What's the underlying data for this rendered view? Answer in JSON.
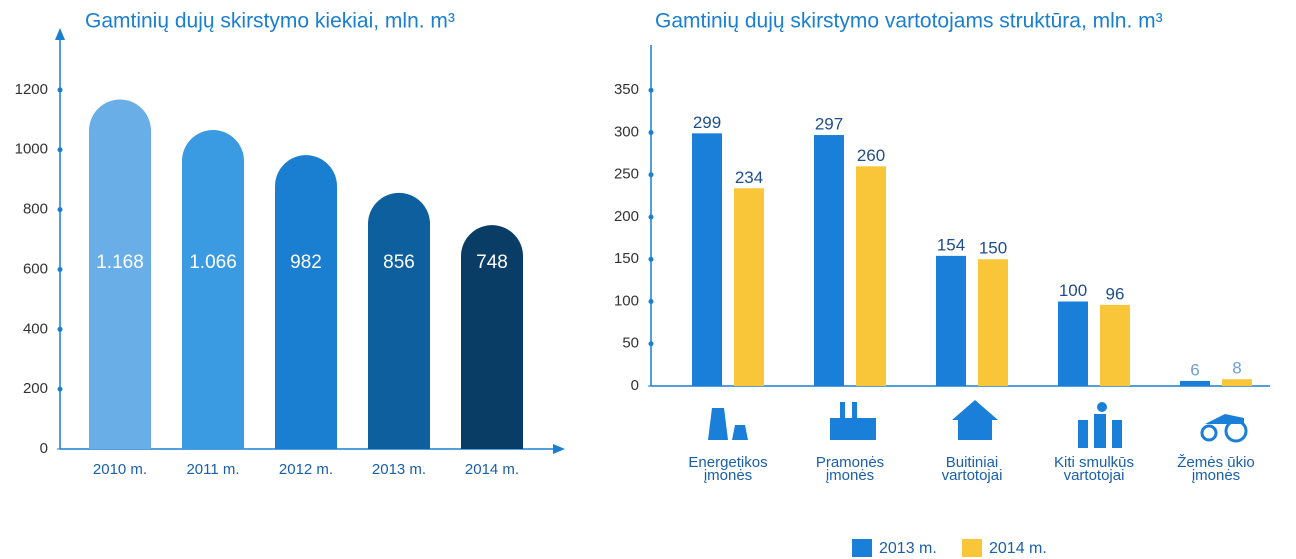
{
  "chart_data": [
    {
      "type": "bar",
      "title": "Gamtinių dujų skirstymo kiekiai, mln. m³",
      "categories": [
        "2010 m.",
        "2011 m.",
        "2012 m.",
        "2013 m.",
        "2014 m."
      ],
      "values": [
        1168,
        1066,
        982,
        856,
        748
      ],
      "value_labels": [
        "1.168",
        "1.066",
        "982",
        "856",
        "748"
      ],
      "colors": [
        "#6aaee8",
        "#3a9be2",
        "#1a7fd0",
        "#0d5f9e",
        "#0a3d66"
      ],
      "ylim": [
        0,
        1300
      ],
      "yticks": [
        0,
        200,
        400,
        600,
        800,
        1000,
        1200
      ]
    },
    {
      "type": "grouped_bar",
      "title": "Gamtinių dujų skirstymo vartotojams struktūra, mln. m³",
      "categories": [
        [
          "Energetikos",
          "įmonės"
        ],
        [
          "Pramonės",
          "įmonės"
        ],
        [
          "Buitiniai",
          "vartotojai"
        ],
        [
          "Kiti smulkūs",
          "vartotojai"
        ],
        [
          "Žemės ūkio",
          "įmonės"
        ]
      ],
      "series": [
        {
          "name": "2013 m.",
          "color": "#1a7fd8",
          "values": [
            299,
            297,
            154,
            100,
            6
          ]
        },
        {
          "name": "2014 m.",
          "color": "#f9c63a",
          "values": [
            234,
            260,
            150,
            96,
            8
          ]
        }
      ],
      "ylim": [
        0,
        400
      ],
      "yticks": [
        0,
        50,
        100,
        150,
        200,
        250,
        300,
        350
      ],
      "legend": "bottom"
    }
  ]
}
